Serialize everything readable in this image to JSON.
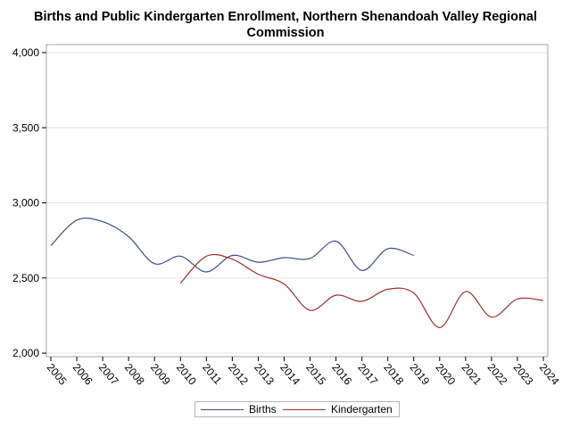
{
  "chart_data": {
    "type": "line",
    "title_line1": "Births and Public Kindergarten Enrollment, Northern Shenandoah Valley Regional",
    "title_line2": "Commission",
    "xlabel": "",
    "ylabel": "",
    "x": [
      "2005",
      "2006",
      "2007",
      "2008",
      "2009",
      "2010",
      "2011",
      "2012",
      "2013",
      "2014",
      "2015",
      "2016",
      "2017",
      "2018",
      "2019",
      "2020",
      "2021",
      "2022",
      "2023",
      "2024"
    ],
    "ylim": [
      2000,
      4000
    ],
    "yticks": [
      2000,
      2500,
      3000,
      3500,
      4000
    ],
    "ytick_labels": [
      "2,000",
      "2,500",
      "3,000",
      "3,500",
      "4,000"
    ],
    "grid": true,
    "legend_position": "bottom-center",
    "series": [
      {
        "name": "Births",
        "color": "#3d4f8a",
        "values": [
          2715,
          2885,
          2875,
          2775,
          2595,
          2645,
          2540,
          2650,
          2605,
          2635,
          2630,
          2745,
          2550,
          2695,
          2650,
          null,
          null,
          null,
          null,
          null
        ]
      },
      {
        "name": "Kindergarten",
        "color": "#a0302a",
        "values": [
          null,
          null,
          null,
          null,
          null,
          2465,
          2645,
          2625,
          2525,
          2460,
          2285,
          2385,
          2345,
          2425,
          2400,
          2170,
          2410,
          2240,
          2360,
          2350
        ]
      }
    ]
  }
}
